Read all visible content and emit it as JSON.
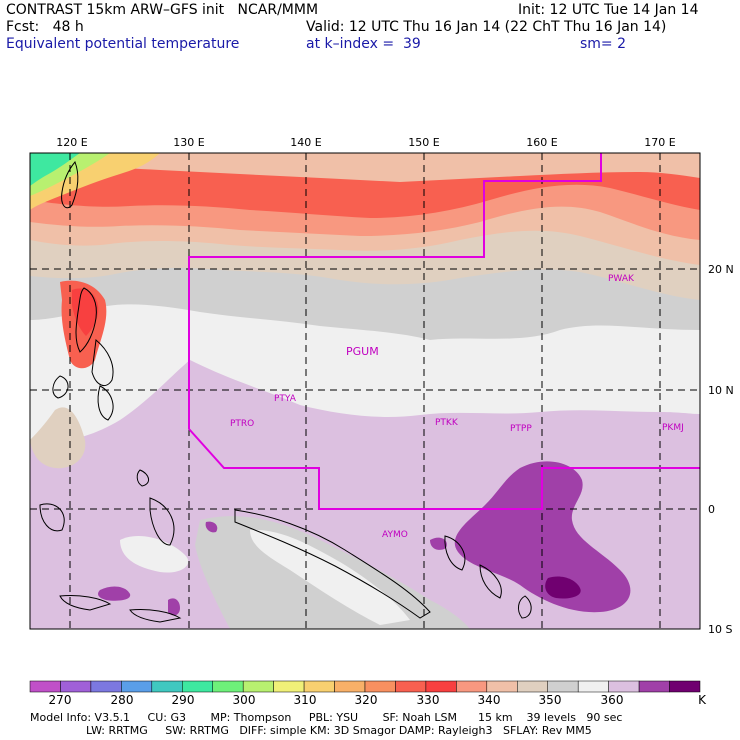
{
  "header": {
    "line1_left": "CONTRAST 15km ARW–GFS init   NCAR/MMM",
    "line1_right": "Init: 12 UTC Tue 14 Jan 14",
    "line2_left": "Fcst:   48 h",
    "line2_right": "Valid: 12 UTC Thu 16 Jan 14 (22 ChT Thu 16 Jan 14)",
    "line3_left": "Equivalent potential temperature",
    "line3_mid": "at k–index =  39",
    "line3_right": "sm= 2"
  },
  "map": {
    "lon_labels": [
      "120 E",
      "130 E",
      "140 E",
      "150 E",
      "160 E",
      "170 E"
    ],
    "lat_labels": [
      "20 N",
      "10 N",
      "0",
      "10 S"
    ],
    "stations": [
      "PWAK",
      "PGUM",
      "PTYA",
      "PTRO",
      "PTKK",
      "PTPP",
      "PKMJ",
      "AYMO"
    ]
  },
  "colorbar": {
    "labels": [
      "270",
      "280",
      "290",
      "300",
      "310",
      "320",
      "330",
      "340",
      "350",
      "360",
      "K"
    ],
    "colors": [
      "#c050c8",
      "#a060d8",
      "#7c78e0",
      "#5a9ee8",
      "#40c8c0",
      "#3ee8a0",
      "#6ef07a",
      "#b8f070",
      "#f0f078",
      "#f8d070",
      "#f8b068",
      "#f89060",
      "#f86050",
      "#f84040",
      "#f89880",
      "#f0c0a8",
      "#e0d0c0",
      "#d0d0d0",
      "#f0f0f0",
      "#dcc0e0",
      "#a040a8",
      "#700070"
    ]
  },
  "footer": {
    "line1": "Model Info: V3.5.1     CU: G3       MP: Thompson     PBL: YSU       SF: Noah LSM      15 km    39 levels   90 sec",
    "line2": "                LW: RRTMG     SW: RRTMG   DIFF: simple KM: 3D Smagor DAMP: Rayleigh3   SFLAY: Rev MM5"
  }
}
